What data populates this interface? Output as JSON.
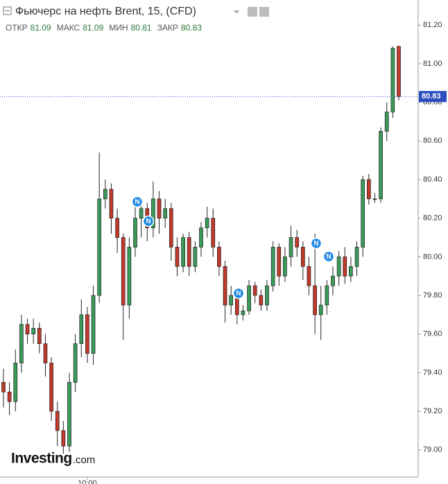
{
  "chart_data": {
    "type": "candlestick",
    "title": "Фьючерс на нефть Brent, 15, (CFD)",
    "ohlc_legend": [
      {
        "label": "ОТКР",
        "value": 81.09
      },
      {
        "label": "МАКС",
        "value": 81.09
      },
      {
        "label": "МИН",
        "value": 80.81
      },
      {
        "label": "ЗАКР",
        "value": 80.83
      }
    ],
    "watermark": [
      "Investing",
      ".com"
    ],
    "events": [
      "N",
      "N",
      "N",
      "N",
      "N"
    ],
    "last_price": 80.83,
    "categories": [
      null,
      null,
      null,
      null,
      null,
      null,
      null,
      null,
      null,
      null,
      null,
      null,
      null,
      null,
      "10:00",
      null,
      null,
      null,
      null,
      null,
      null,
      null,
      null,
      null,
      null,
      null,
      null,
      null,
      null,
      null,
      null,
      null,
      null,
      null,
      null,
      null,
      null,
      null,
      null,
      null,
      null,
      null,
      null,
      null,
      null,
      null,
      null,
      null,
      null,
      null,
      null,
      null,
      null,
      null,
      null,
      null,
      null,
      null,
      null,
      null,
      null,
      null,
      null,
      null,
      null,
      null,
      null
    ],
    "open": [
      79.35,
      79.3,
      79.25,
      79.45,
      79.65,
      79.6,
      79.63,
      79.55,
      79.45,
      79.2,
      79.1,
      79.02,
      79.35,
      79.55,
      79.7,
      79.5,
      79.8,
      80.3,
      80.35,
      80.2,
      80.1,
      79.75,
      80.05,
      80.2,
      80.25,
      80.15,
      80.3,
      80.2,
      80.25,
      80.05,
      79.95,
      80.1,
      79.95,
      80.05,
      80.15,
      80.2,
      80.05,
      79.95,
      79.75,
      79.8,
      79.7,
      79.72,
      79.85,
      79.8,
      79.75,
      79.85,
      80.05,
      79.9,
      80.0,
      80.1,
      80.05,
      79.95,
      79.85,
      79.7,
      79.75,
      79.85,
      79.9,
      80.0,
      79.9,
      79.95,
      80.05,
      80.4,
      80.3,
      80.3,
      80.65,
      80.75,
      81.09
    ],
    "high": [
      79.42,
      79.35,
      79.52,
      79.7,
      79.68,
      79.68,
      79.66,
      79.6,
      79.48,
      79.25,
      79.15,
      79.4,
      79.6,
      79.78,
      79.74,
      79.85,
      80.54,
      80.4,
      80.38,
      80.25,
      80.12,
      80.1,
      80.26,
      80.3,
      80.28,
      80.39,
      80.34,
      80.3,
      80.28,
      80.1,
      80.12,
      80.13,
      80.08,
      80.18,
      80.26,
      80.25,
      80.08,
      79.98,
      79.85,
      79.82,
      79.75,
      79.88,
      79.87,
      79.83,
      79.88,
      80.08,
      80.07,
      80.05,
      80.16,
      80.14,
      80.08,
      80.0,
      80.12,
      79.85,
      79.88,
      79.95,
      80.03,
      80.05,
      80.0,
      80.08,
      80.42,
      80.43,
      80.33,
      80.67,
      80.8,
      81.09,
      81.09
    ],
    "low": [
      79.22,
      79.18,
      79.2,
      79.4,
      79.55,
      79.55,
      79.5,
      79.38,
      79.15,
      79.02,
      78.98,
      78.99,
      79.3,
      79.48,
      79.45,
      79.44,
      79.76,
      80.25,
      80.12,
      80.02,
      79.57,
      79.68,
      80.0,
      80.1,
      80.08,
      80.1,
      80.12,
      80.15,
      79.98,
      79.9,
      79.92,
      79.9,
      79.92,
      80.0,
      80.1,
      80.0,
      79.9,
      79.66,
      79.7,
      79.65,
      79.67,
      79.7,
      79.76,
      79.72,
      79.72,
      79.82,
      79.85,
      79.87,
      79.95,
      80.0,
      79.88,
      79.8,
      79.6,
      79.57,
      79.7,
      79.8,
      79.85,
      79.86,
      79.87,
      79.9,
      80.0,
      80.27,
      80.28,
      80.28,
      80.6,
      80.72,
      80.81
    ],
    "close": [
      79.3,
      79.25,
      79.45,
      79.65,
      79.6,
      79.63,
      79.55,
      79.45,
      79.2,
      79.1,
      79.02,
      79.35,
      79.55,
      79.7,
      79.5,
      79.8,
      80.3,
      80.35,
      80.2,
      80.1,
      79.75,
      80.05,
      80.2,
      80.25,
      80.15,
      80.3,
      80.2,
      80.25,
      80.05,
      79.95,
      80.1,
      79.95,
      80.05,
      80.15,
      80.2,
      80.05,
      79.95,
      79.75,
      79.8,
      79.7,
      79.72,
      79.85,
      79.8,
      79.75,
      79.85,
      80.05,
      79.9,
      80.0,
      80.1,
      80.05,
      79.95,
      79.85,
      79.7,
      79.75,
      79.85,
      79.9,
      80.0,
      79.9,
      79.95,
      80.05,
      80.4,
      80.3,
      80.3,
      80.65,
      80.75,
      81.08,
      80.83
    ],
    "up_color": "#3a9a5a",
    "down_color": "#c0392b",
    "ylim": [
      78.87,
      81.33
    ],
    "yticks": [
      {
        "value": 79,
        "label": "79.00"
      },
      {
        "value": 79.2,
        "label": "79.20"
      },
      {
        "value": 79.4,
        "label": "79.40"
      },
      {
        "value": 79.6,
        "label": "79.60"
      },
      {
        "value": 79.8,
        "label": "79.80"
      },
      {
        "value": 80,
        "label": "80.00"
      },
      {
        "value": 80.2,
        "label": "80.20"
      },
      {
        "value": 80.4,
        "label": "80.40"
      },
      {
        "value": 80.6,
        "label": "80.60"
      },
      {
        "value": 80.8,
        "label": "80.80"
      },
      {
        "value": 81,
        "label": "81.00"
      },
      {
        "value": 81.2,
        "label": "81.20"
      }
    ]
  }
}
